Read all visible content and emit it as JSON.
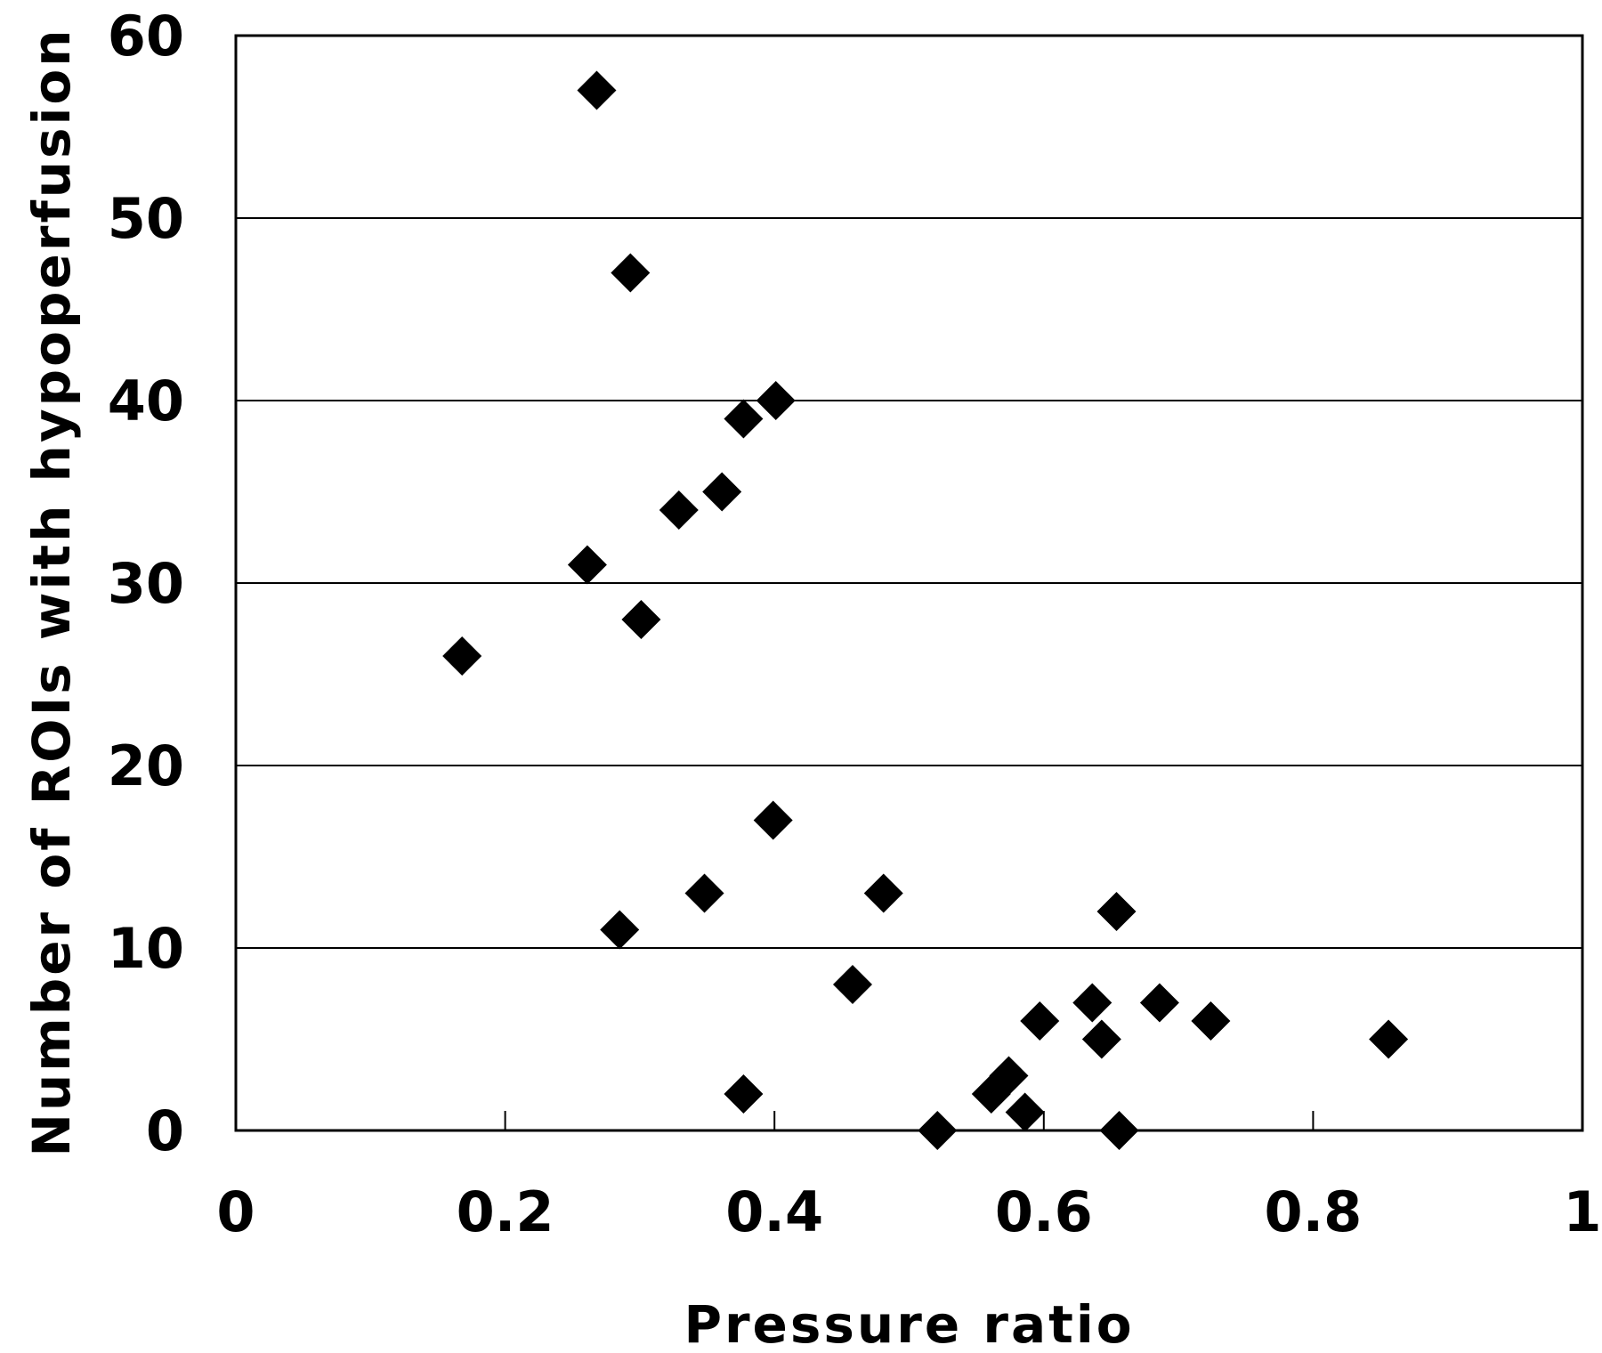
{
  "chart_data": {
    "type": "scatter",
    "title": "",
    "xlabel": "Pressure ratio",
    "ylabel": "Number of ROIs with hypoperfusion",
    "xlim": [
      0,
      1
    ],
    "ylim": [
      0,
      60
    ],
    "x_ticks": [
      0,
      0.2,
      0.4,
      0.6,
      0.8,
      1
    ],
    "x_tick_labels": [
      "0",
      "0.2",
      "0.4",
      "0.6",
      "0.8",
      "1"
    ],
    "y_ticks": [
      0,
      10,
      20,
      30,
      40,
      50,
      60
    ],
    "y_tick_labels": [
      "0",
      "10",
      "20",
      "30",
      "40",
      "50",
      "60"
    ],
    "grid": "horizontal",
    "marker": "diamond",
    "marker_color": "#000000",
    "series": [
      {
        "points": [
          {
            "x": 0.268,
            "y": 57
          },
          {
            "x": 0.293,
            "y": 47
          },
          {
            "x": 0.401,
            "y": 40
          },
          {
            "x": 0.377,
            "y": 39
          },
          {
            "x": 0.361,
            "y": 35
          },
          {
            "x": 0.329,
            "y": 34
          },
          {
            "x": 0.261,
            "y": 31
          },
          {
            "x": 0.301,
            "y": 28
          },
          {
            "x": 0.168,
            "y": 26
          },
          {
            "x": 0.399,
            "y": 17
          },
          {
            "x": 0.348,
            "y": 13
          },
          {
            "x": 0.481,
            "y": 13
          },
          {
            "x": 0.285,
            "y": 11
          },
          {
            "x": 0.654,
            "y": 12
          },
          {
            "x": 0.458,
            "y": 8
          },
          {
            "x": 0.636,
            "y": 7
          },
          {
            "x": 0.686,
            "y": 7
          },
          {
            "x": 0.597,
            "y": 6
          },
          {
            "x": 0.724,
            "y": 6
          },
          {
            "x": 0.643,
            "y": 5
          },
          {
            "x": 0.856,
            "y": 5
          },
          {
            "x": 0.574,
            "y": 3
          },
          {
            "x": 0.561,
            "y": 2
          },
          {
            "x": 0.377,
            "y": 2
          },
          {
            "x": 0.586,
            "y": 1
          },
          {
            "x": 0.521,
            "y": 0
          },
          {
            "x": 0.656,
            "y": 0
          }
        ]
      }
    ]
  }
}
